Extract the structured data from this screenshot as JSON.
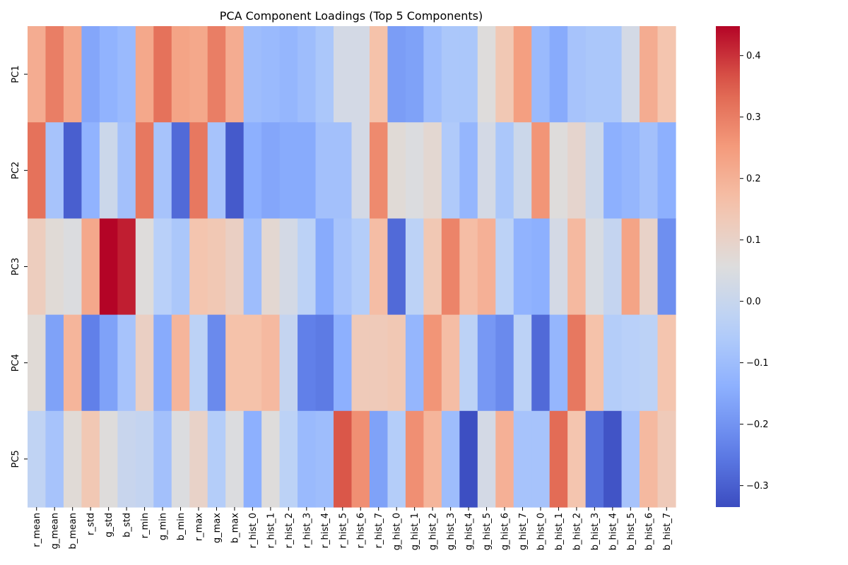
{
  "chart_data": {
    "type": "heatmap",
    "title": "PCA Component Loadings (Top 5 Components)",
    "colormap": "coolwarm",
    "rows": [
      "PC1",
      "PC2",
      "PC3",
      "PC4",
      "PC5"
    ],
    "columns": [
      "r_mean",
      "g_mean",
      "b_mean",
      "r_std",
      "g_std",
      "b_std",
      "r_min",
      "g_min",
      "b_min",
      "r_max",
      "g_max",
      "b_max",
      "r_hist_0",
      "r_hist_1",
      "r_hist_2",
      "r_hist_3",
      "r_hist_4",
      "r_hist_5",
      "r_hist_6",
      "r_hist_7",
      "g_hist_0",
      "g_hist_1",
      "g_hist_2",
      "g_hist_3",
      "g_hist_4",
      "g_hist_5",
      "g_hist_6",
      "g_hist_7",
      "b_hist_0",
      "b_hist_1",
      "b_hist_2",
      "b_hist_3",
      "b_hist_4",
      "b_hist_5",
      "b_hist_6",
      "b_hist_7"
    ],
    "values": [
      [
        0.21,
        0.3,
        0.22,
        -0.16,
        -0.13,
        -0.11,
        0.22,
        0.32,
        0.23,
        0.22,
        0.3,
        0.21,
        -0.1,
        -0.11,
        -0.12,
        -0.1,
        -0.07,
        0.03,
        0.03,
        0.16,
        -0.18,
        -0.17,
        -0.1,
        -0.07,
        -0.07,
        0.06,
        0.14,
        0.24,
        -0.11,
        -0.15,
        -0.08,
        -0.07,
        -0.07,
        0.03,
        0.21,
        0.15
      ],
      [
        0.32,
        -0.08,
        -0.3,
        -0.13,
        0.01,
        -0.09,
        0.31,
        -0.08,
        -0.28,
        0.31,
        -0.08,
        -0.31,
        -0.14,
        -0.16,
        -0.15,
        -0.15,
        -0.09,
        -0.09,
        0.03,
        0.28,
        0.07,
        0.05,
        0.08,
        -0.06,
        -0.12,
        0.03,
        -0.07,
        0.01,
        0.26,
        0.06,
        0.09,
        0.01,
        -0.14,
        -0.12,
        -0.09,
        -0.14
      ],
      [
        0.12,
        0.07,
        0.05,
        0.22,
        0.45,
        0.42,
        0.06,
        -0.04,
        -0.07,
        0.15,
        0.14,
        0.11,
        -0.1,
        0.08,
        0.03,
        -0.03,
        -0.15,
        -0.08,
        -0.05,
        0.17,
        -0.28,
        -0.03,
        0.14,
        0.29,
        0.17,
        0.2,
        -0.03,
        -0.13,
        -0.14,
        0.03,
        0.18,
        0.04,
        -0.01,
        0.23,
        0.1,
        -0.21
      ],
      [
        0.07,
        -0.17,
        0.19,
        -0.24,
        -0.17,
        -0.08,
        0.11,
        -0.15,
        0.19,
        -0.03,
        -0.22,
        0.16,
        0.16,
        0.18,
        -0.01,
        -0.24,
        -0.25,
        -0.14,
        0.13,
        0.13,
        0.14,
        -0.12,
        0.26,
        0.17,
        -0.03,
        -0.19,
        -0.22,
        -0.03,
        -0.28,
        -0.12,
        0.31,
        0.16,
        -0.05,
        -0.04,
        -0.03,
        0.15
      ],
      [
        -0.02,
        -0.08,
        0.07,
        0.14,
        0.06,
        0.0,
        -0.01,
        -0.09,
        0.05,
        0.1,
        -0.05,
        0.05,
        -0.14,
        0.06,
        -0.03,
        -0.11,
        -0.1,
        0.36,
        0.27,
        -0.17,
        -0.05,
        0.27,
        0.19,
        -0.1,
        -0.33,
        0.03,
        0.2,
        -0.08,
        -0.08,
        0.33,
        0.15,
        -0.27,
        -0.32,
        -0.08,
        0.18,
        0.13
      ]
    ],
    "colorbar_ticks": [
      0.4,
      0.3,
      0.2,
      0.1,
      0.0,
      -0.1,
      -0.2,
      -0.3
    ],
    "colorbar_tick_labels": [
      "0.4",
      "0.3",
      "0.2",
      "0.1",
      "0.0",
      "−0.1",
      "−0.2",
      "−0.3"
    ],
    "vmin": -0.335,
    "vmax": 0.448
  }
}
